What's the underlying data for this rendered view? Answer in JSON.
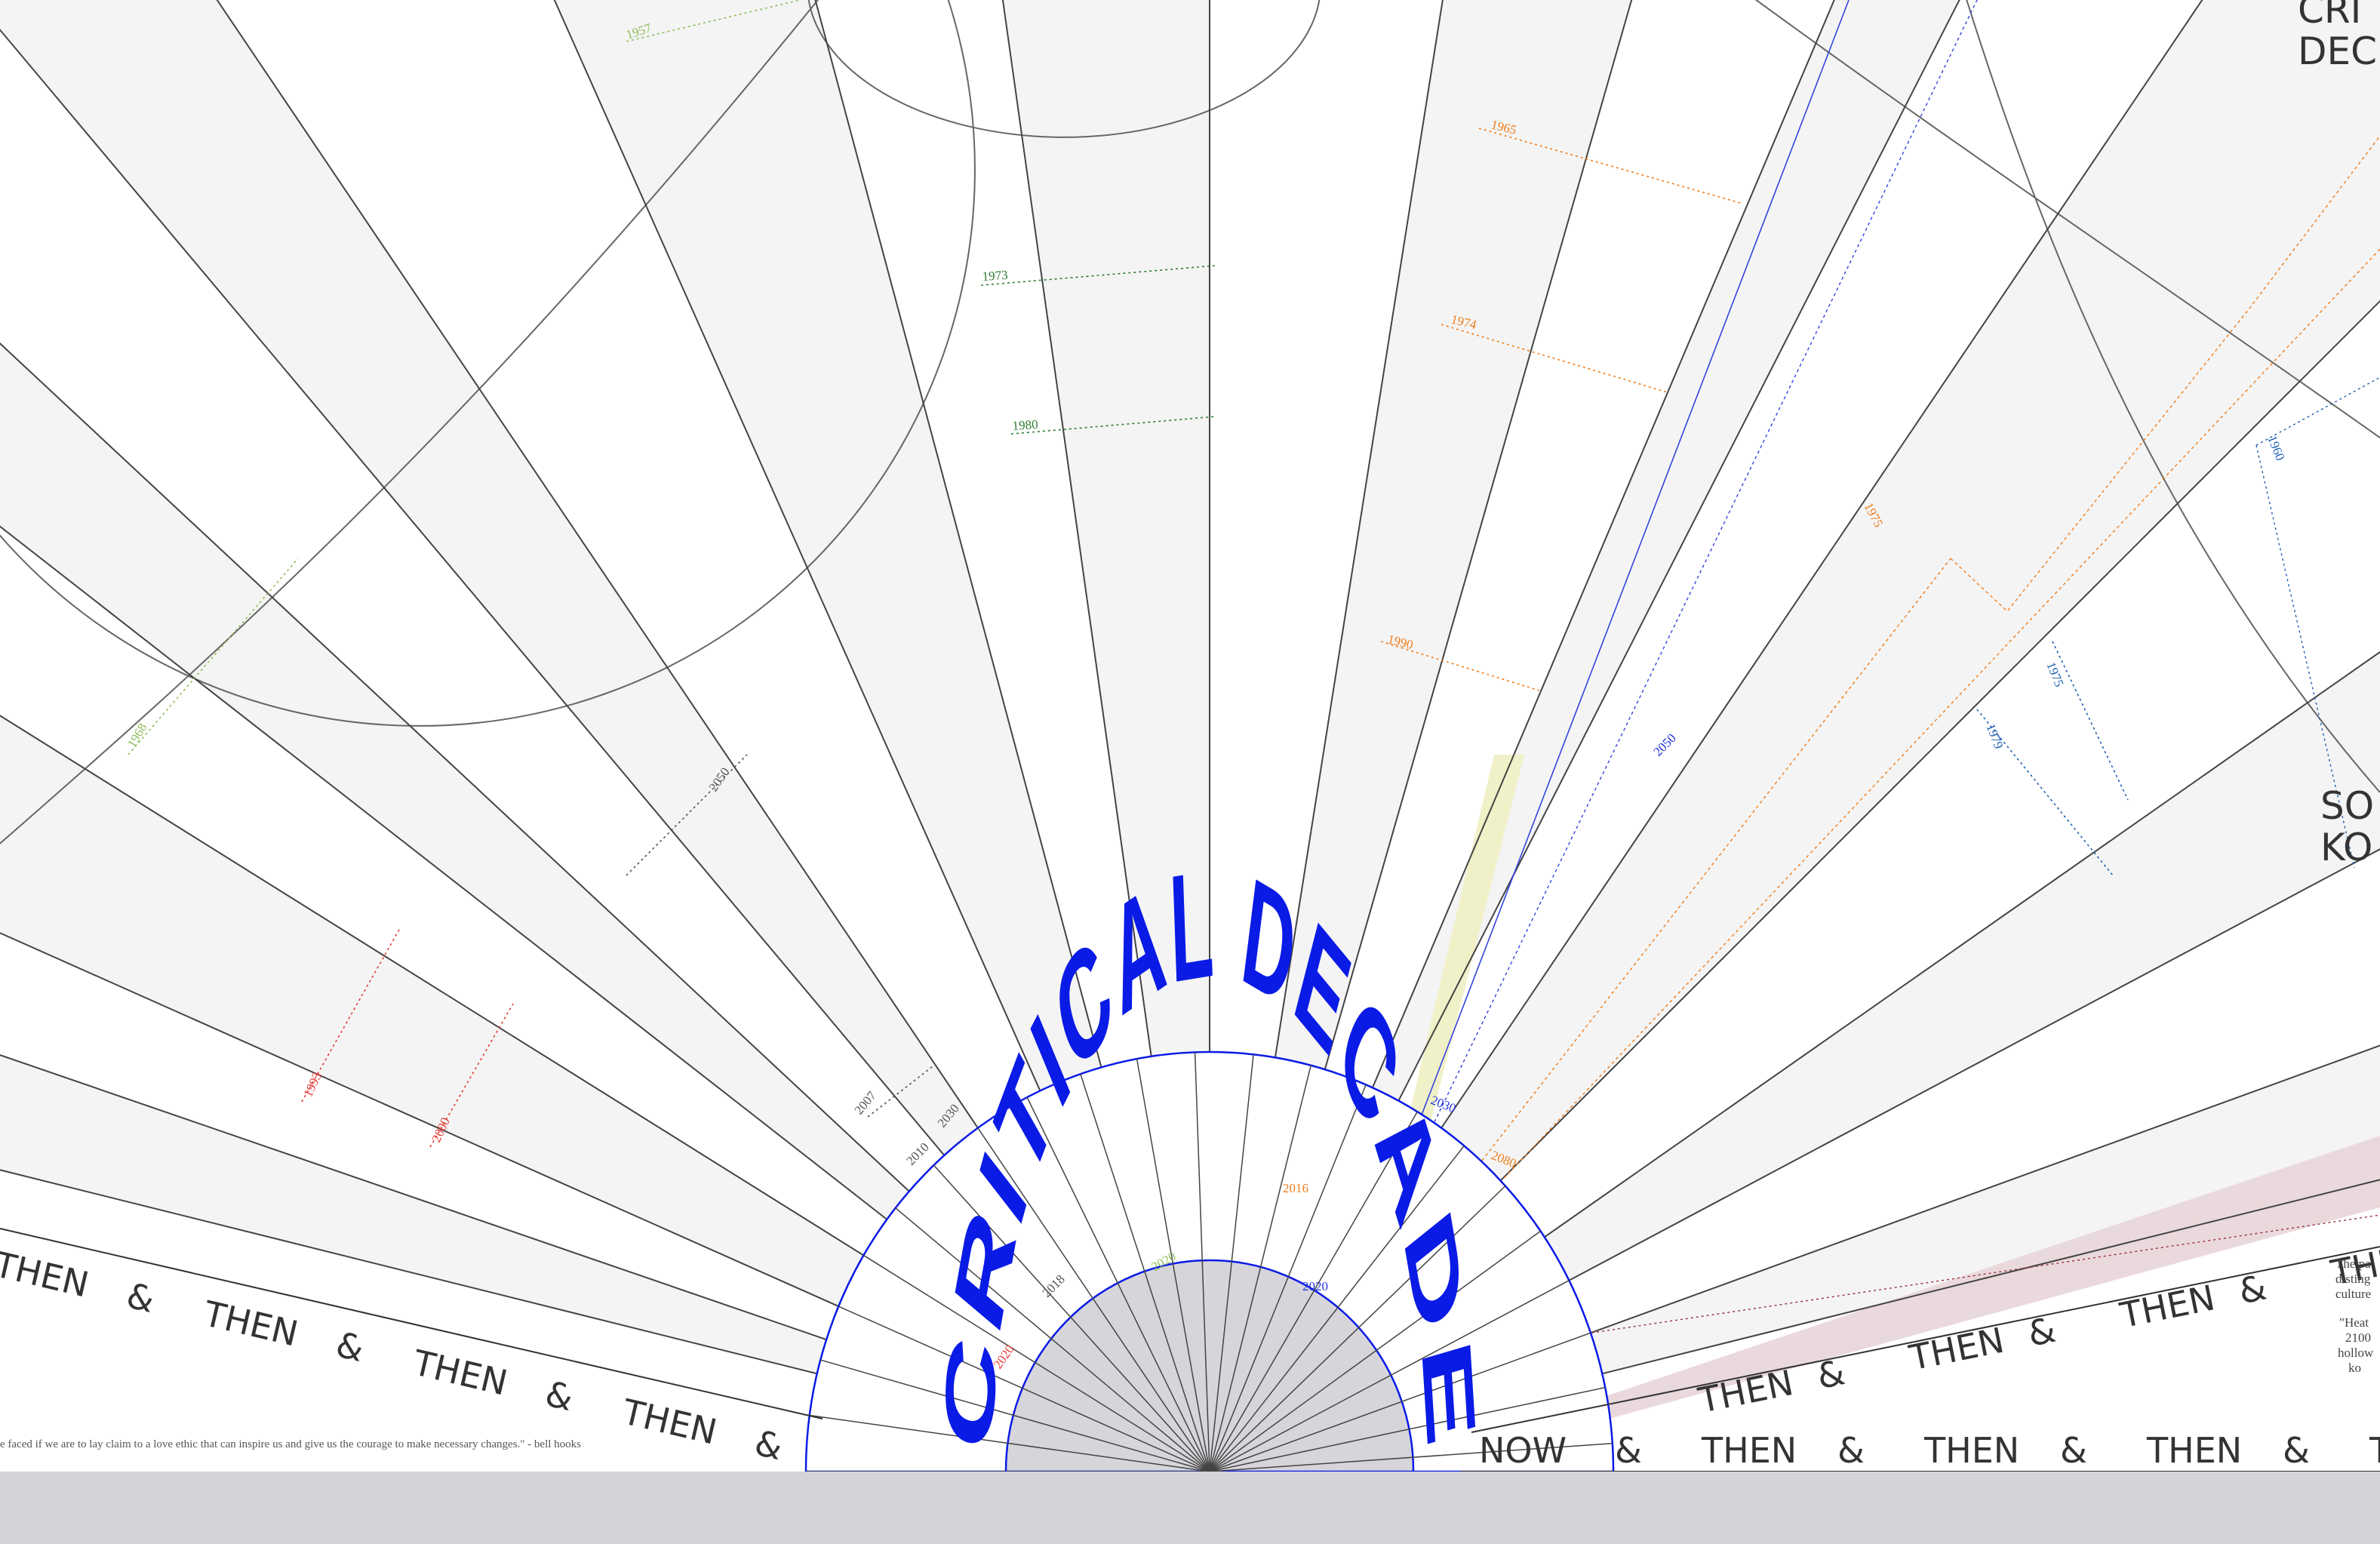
{
  "title": {
    "text": "CRITICAL DECADE",
    "color": "#0a1be6"
  },
  "corner_labels": {
    "top_right_1": "CRI",
    "top_right_2": "DEC",
    "mid_right_1": "SO",
    "mid_right_2": "KO"
  },
  "quote_text": "e faced if we are to lay claim to a love ethic that can inspire us and give us the courage to make necessary changes.\" - bell hooks",
  "band_left": [
    "THEN",
    "&",
    "THEN",
    "&",
    "THEN",
    "&",
    "THEN",
    "&"
  ],
  "band_right_upper": [
    "THEN",
    "&",
    "THEN",
    "&",
    "THEN",
    "&",
    "THEN",
    "&"
  ],
  "band_right_lower": [
    "NOW",
    "&",
    "THEN",
    "&",
    "THEN",
    "&",
    "THEN",
    "&",
    "T"
  ],
  "right_text": {
    "line1": "The pa",
    "line2": "disting",
    "line3": "culture",
    "line4": "\"Heat",
    "line5": "2100",
    "line6": "hollow",
    "line7": "ko"
  },
  "year_labels": [
    {
      "text": "1957",
      "color": "#8dbd5a"
    },
    {
      "text": "1973",
      "color": "#2e7d32"
    },
    {
      "text": "1980",
      "color": "#2e7d32"
    },
    {
      "text": "1968",
      "color": "#8dbd5a"
    },
    {
      "text": "2050",
      "color": "#555555"
    },
    {
      "text": "1993",
      "color": "#e53935"
    },
    {
      "text": "2000",
      "color": "#e53935"
    },
    {
      "text": "2007",
      "color": "#555555"
    },
    {
      "text": "2030",
      "color": "#555555"
    },
    {
      "text": "2010",
      "color": "#555555"
    },
    {
      "text": "1965",
      "color": "#ef7d1a"
    },
    {
      "text": "1974",
      "color": "#ef7d1a"
    },
    {
      "text": "1990",
      "color": "#ef7d1a"
    },
    {
      "text": "1975",
      "color": "#ef7d1a"
    },
    {
      "text": "2050",
      "color": "#2233dd"
    },
    {
      "text": "2030",
      "color": "#2233dd"
    },
    {
      "text": "2080",
      "color": "#ef7d1a"
    },
    {
      "text": "2016",
      "color": "#ef7d1a"
    },
    {
      "text": "2020",
      "color": "#2233dd"
    },
    {
      "text": "2020",
      "color": "#8dbd5a"
    },
    {
      "text": "2018",
      "color": "#555555"
    },
    {
      "text": "2020",
      "color": "#e53935"
    },
    {
      "text": "1960",
      "color": "#1e5fb3"
    },
    {
      "text": "1975",
      "color": "#1e5fb3"
    },
    {
      "text": "1979",
      "color": "#1e5fb3"
    }
  ]
}
